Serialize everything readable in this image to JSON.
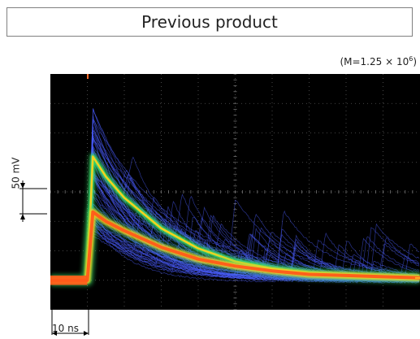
{
  "header": {
    "title": "Previous product"
  },
  "annotation": {
    "gain_text": "(M=1.25 × 10",
    "gain_exponent": "6",
    "gain_close": ")"
  },
  "chart_data": {
    "type": "line",
    "title": "Previous product",
    "plot_background": "#000000",
    "grid": true,
    "grid_color": "#5a5a5a",
    "scale_bars": {
      "vertical": "50 mV",
      "horizontal": "10 ns"
    },
    "x_units": "ns",
    "y_units": "mV",
    "xlim": [
      -10,
      90
    ],
    "ylim": [
      -25,
      175
    ],
    "series": [
      {
        "x": [
          -10,
          0,
          1.5,
          5,
          10,
          20,
          30,
          40,
          50,
          60,
          70,
          80,
          90
        ],
        "values": [
          0,
          0,
          105,
          88,
          70,
          44,
          27,
          16,
          10,
          6,
          4,
          3,
          2
        ],
        "color": "#39e26a"
      },
      {
        "x": [
          -10,
          0,
          1.5,
          5,
          10,
          20,
          30,
          40,
          50,
          60,
          70,
          80,
          90
        ],
        "values": [
          0,
          0,
          58,
          50,
          42,
          28,
          18,
          12,
          8,
          5,
          4,
          3,
          2
        ],
        "color": "#ff5a1a"
      }
    ],
    "trace_colors": {
      "core": "#ff5a1a",
      "mid": "#ffd21a",
      "halo": "#39e26a",
      "sparse": "#4a5cff"
    }
  }
}
